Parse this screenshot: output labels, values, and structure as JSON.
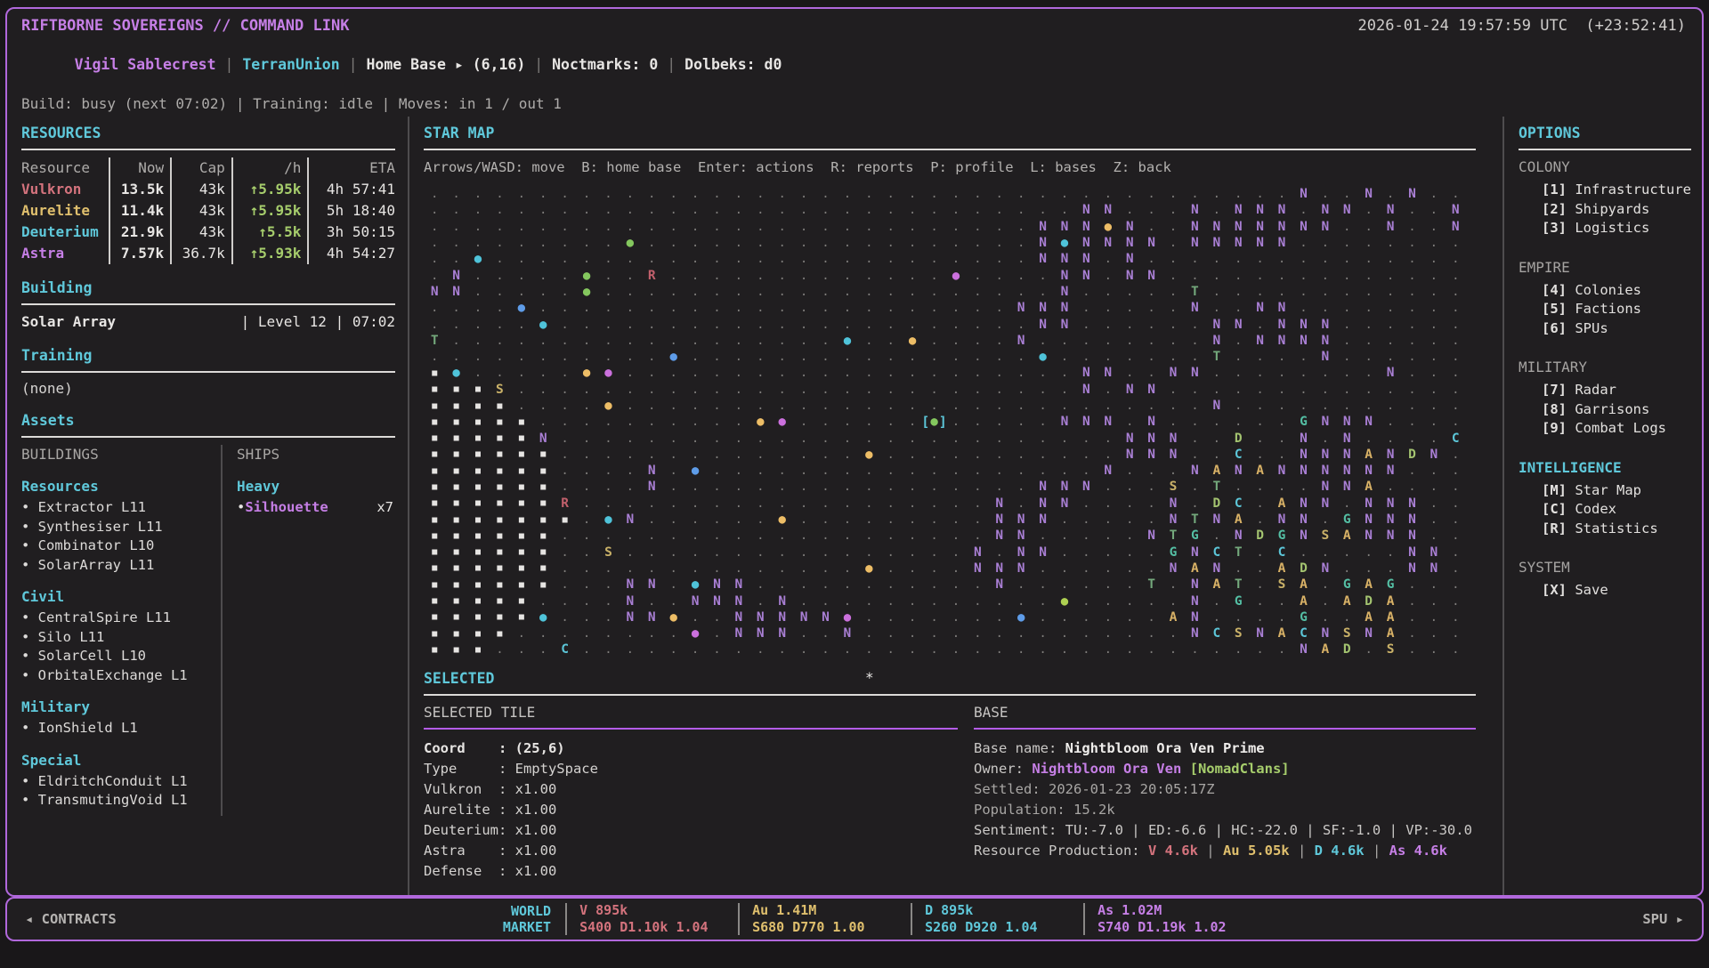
{
  "header": {
    "title": "RIFTBORNE SOVEREIGNS // COMMAND LINK",
    "clock": "2026-01-24 19:57:59 UTC  (+23:52:41)",
    "player": "Vigil Sablecrest",
    "faction": "TerranUnion",
    "home": "Home Base",
    "home_arrow": "▸",
    "home_coord": "(6,16)",
    "noctmarks": "Noctmarks: 0",
    "dolbeks": "Dolbeks: d0",
    "status": "Build: busy (next 07:02) | Training: idle | Moves: in 1 / out 1"
  },
  "resources": {
    "title": "RESOURCES",
    "columns": [
      "Resource",
      "Now",
      "Cap",
      "/h",
      "ETA"
    ],
    "rows": [
      {
        "name": "Vulkron",
        "now": "13.5k",
        "cap": "43k",
        "rate": "↑5.95k",
        "eta": "4h 57:41",
        "color": "#d4737d"
      },
      {
        "name": "Aurelite",
        "now": "11.4k",
        "cap": "43k",
        "rate": "↑5.95k",
        "eta": "5h 18:40",
        "color": "#dfbf6d"
      },
      {
        "name": "Deuterium",
        "now": "21.9k",
        "cap": "43k",
        "rate": "↑5.5k",
        "eta": "3h 50:15",
        "color": "#5fc8da"
      },
      {
        "name": "Astra",
        "now": "7.57k",
        "cap": "36.7k",
        "rate": "↑5.93k",
        "eta": "4h 54:27",
        "color": "#c67fe6"
      }
    ]
  },
  "building": {
    "title": "Building",
    "name": "Solar Array",
    "detail": "| Level 12 | 07:02"
  },
  "training": {
    "title": "Training",
    "value": "(none)"
  },
  "assets": {
    "title": "Assets",
    "buildings": {
      "title": "BUILDINGS",
      "groups": [
        {
          "name": "Resources",
          "items": [
            "Extractor L11",
            "Synthesiser L11",
            "Combinator L10",
            "SolarArray L11"
          ]
        },
        {
          "name": "Civil",
          "items": [
            "CentralSpire L11",
            "Silo L11",
            "SolarCell L10",
            "OrbitalExchange L1"
          ]
        },
        {
          "name": "Military",
          "items": [
            "IonShield L1"
          ]
        },
        {
          "name": "Special",
          "items": [
            "EldritchConduit L1",
            "TransmutingVoid L1"
          ]
        }
      ]
    },
    "ships": {
      "title": "SHIPS",
      "groups": [
        {
          "name": "Heavy",
          "items": [
            {
              "name": "Silhouette",
              "count": "x7"
            }
          ]
        }
      ]
    }
  },
  "star_map": {
    "title": "STAR MAP",
    "help": "Arrows/WASD: move  B: home base  Enter: actions  R: reports  P: profile  L: bases  Z: back",
    "colors": {
      ".": "#7e7c7a",
      "#": "#e6e4e2",
      "N": "#a97fd4",
      "R": "#c2606c",
      "T": "#74a97c",
      "S": "#c9b168",
      "C": "#5cc6d8",
      "G": "#54bfa4",
      "A": "#d8b166",
      "D": "#a4c470",
      "g": "#84c75e",
      "c": "#4fc3d9",
      "b": "#5e9ce8",
      "o": "#edbd66",
      "m": "#cb70dd",
      "l": "#aed052",
      "cursor_bracket": "#5cc6d8",
      "cursor_dot": "#84c75e"
    },
    "grid": [
      "........................................N..N.N..",
      "..............................NN...N.NNN.NN.N..N",
      "............................NNNoN..NNNNNNN..N..N",
      ".........g..................NcNNNN.NNNNN........",
      "..c.........................NNN.N...............",
      ".N.....g..R.............m....NN.NN..............",
      "NN.....g.....................N.....T............",
      "....b......................NNN.....N..NN........",
      ".....c......................NN......NN.NNN......",
      "T..................c..o....N........N.NNNN......",
      "...........b................c.......T....N......",
      "#c.....om.....................NN..NN........N...",
      "###S..........................N.NN..............",
      "####....o...........................N...........",
      "#####..........om......@.....NNN.N......GNNN....",
      "#####N..........................NNN..D..N.N....C",
      "######..............o...........NNN..C..NNNANDN.",
      "######....N.b..................N...NANANNNNNN...",
      "######....N.................NNN...S.T....NNA....",
      "######R...................N.NN....N.DC.ANN.NNN..",
      "#######.cN......o.........NNN.....NTNA.NN.GNNN..",
      "######....................NN.....NTG.NDGNSANNN..",
      "######..S................N.NN.....GNCT.C.....NN.",
      "######..............o....NNN......NAN..ADN...NN.",
      "######...NN.cNN...........N......T.NAT.SA.GAG...",
      "#####....N..NNN.N............l.....N.G..A.ADA...",
      "#####c...NNo..NNNNNm.......b......AN....G..AA...",
      "####........m.NNN..N...............NCSNACNSNA...",
      "###...C.................................NAD.S..."
    ]
  },
  "selected": {
    "title": "SELECTED",
    "marker": "*",
    "tile": {
      "heading": "SELECTED TILE",
      "fields": [
        {
          "label": "Coord",
          "value": "(25,6)",
          "bold": true
        },
        {
          "label": "Type",
          "value": "EmptySpace"
        },
        {
          "label": "Vulkron",
          "value": "x1.00"
        },
        {
          "label": "Aurelite",
          "value": "x1.00"
        },
        {
          "label": "Deuterium",
          "value": "x1.00"
        },
        {
          "label": "Astra",
          "value": "x1.00"
        },
        {
          "label": "Defense",
          "value": "x1.00"
        }
      ]
    },
    "base": {
      "heading": "BASE",
      "name_label": "Base name: ",
      "name": "Nightbloom Ora Ven Prime",
      "owner_label": "Owner: ",
      "owner": "Nightbloom Ora Ven",
      "clan": "[NomadClans]",
      "settled": "Settled: 2026-01-23 20:05:17Z",
      "population": "Population: 15.2k",
      "sentiment": "Sentiment: TU:-7.0 | ED:-6.6 | HC:-22.0 | SF:-1.0 | VP:-30.0",
      "production_label": "Resource Production: ",
      "production": [
        {
          "text": "V 4.6k",
          "color": "#d4737d"
        },
        {
          "text": "Au 5.05k",
          "color": "#dfbf6d"
        },
        {
          "text": "D 4.6k",
          "color": "#5fc8da"
        },
        {
          "text": "As 4.6k",
          "color": "#c67fe6"
        }
      ]
    }
  },
  "options": {
    "title": "OPTIONS",
    "sections": [
      {
        "name": "COLONY",
        "active": false,
        "items": [
          {
            "key": "[1]",
            "label": "Infrastructure"
          },
          {
            "key": "[2]",
            "label": "Shipyards"
          },
          {
            "key": "[3]",
            "label": "Logistics"
          }
        ]
      },
      {
        "name": "EMPIRE",
        "active": false,
        "items": [
          {
            "key": "[4]",
            "label": "Colonies"
          },
          {
            "key": "[5]",
            "label": "Factions"
          },
          {
            "key": "[6]",
            "label": "SPUs"
          }
        ]
      },
      {
        "name": "MILITARY",
        "active": false,
        "items": [
          {
            "key": "[7]",
            "label": "Radar"
          },
          {
            "key": "[8]",
            "label": "Garrisons"
          },
          {
            "key": "[9]",
            "label": "Combat Logs"
          }
        ]
      },
      {
        "name": "INTELLIGENCE",
        "active": true,
        "items": [
          {
            "key": "[M]",
            "label": "Star Map"
          },
          {
            "key": "[C]",
            "label": "Codex"
          },
          {
            "key": "[R]",
            "label": "Statistics"
          }
        ]
      },
      {
        "name": "SYSTEM",
        "active": false,
        "items": [
          {
            "key": "[X]",
            "label": "Save"
          }
        ]
      }
    ]
  },
  "bottom_bar": {
    "contracts_arrow": "◂ ",
    "contracts": "CONTRACTS",
    "market_title_1": "WORLD",
    "market_title_2": "MARKET",
    "blocks": [
      {
        "line1": "V 895k",
        "line2": "S400 D1.10k 1.04",
        "color": "#d4737d"
      },
      {
        "line1": "Au 1.41M",
        "line2": "S680 D770 1.00",
        "color": "#dfbf6d"
      },
      {
        "line1": "D 895k",
        "line2": "S260 D920 1.04",
        "color": "#5fc8da"
      },
      {
        "line1": "As 1.02M",
        "line2": "S740 D1.19k 1.02",
        "color": "#c67fe6"
      }
    ],
    "spu": "SPU",
    "spu_arrow": " ▸"
  }
}
